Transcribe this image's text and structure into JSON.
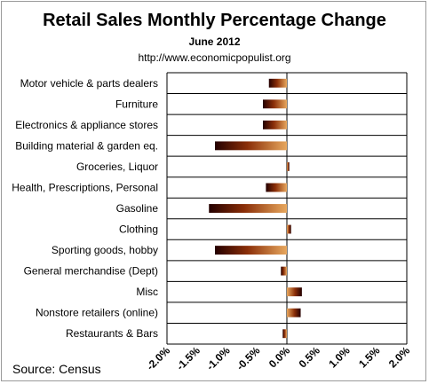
{
  "source": "Source:  Census",
  "chart_data": {
    "type": "bar",
    "orientation": "horizontal",
    "title": "Retail Sales Monthly  Percentage Change",
    "subtitle": "June 2012",
    "url": "http://www.economicpopulist.org",
    "categories": [
      "Motor vehicle & parts dealers",
      "Furniture",
      "Electronics & appliance stores",
      "Building material & garden eq.",
      "Groceries, Liquor",
      "Health, Prescriptions, Personal",
      "Gasoline",
      "Clothing",
      "Sporting goods, hobby",
      "General merchandise (Dept)",
      "Misc",
      "Nonstore retailers (online)",
      "Restaurants & Bars"
    ],
    "values": [
      -0.3,
      -0.4,
      -0.4,
      -1.2,
      0.04,
      -0.35,
      -1.3,
      0.07,
      -1.2,
      -0.1,
      0.25,
      0.23,
      -0.07
    ],
    "xlim": [
      -2.0,
      2.0
    ],
    "xticks": [
      "-2.0%",
      "-1.5%",
      "-1.0%",
      "-0.5%",
      "0.0%",
      "0.5%",
      "1.0%",
      "1.5%",
      "2.0%"
    ],
    "grid": true,
    "legend": "none",
    "colors": {
      "dark": "#240000",
      "mid": "#8a2e08",
      "light": "#e8a85e",
      "grid": "#000000"
    }
  }
}
